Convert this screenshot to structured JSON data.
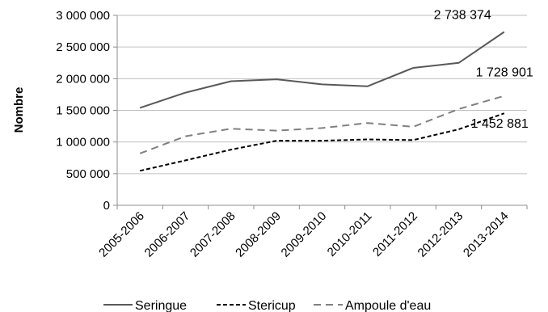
{
  "chart_data": {
    "type": "line",
    "title": "",
    "xlabel": "",
    "ylabel": "Nombre",
    "ylim": [
      0,
      3000000
    ],
    "yticks": [
      0,
      500000,
      1000000,
      1500000,
      2000000,
      2500000,
      3000000
    ],
    "ytick_labels": [
      "0",
      "500 000",
      "1 000 000",
      "1 500 000",
      "2 000 000",
      "2 500 000",
      "3 000 000"
    ],
    "categories": [
      "2005-2006",
      "2006-2007",
      "2007-2008",
      "2008-2009",
      "2009-2010",
      "2010-2011",
      "2011-2012",
      "2012-2013",
      "2013-2014"
    ],
    "grid": "horizontal",
    "legend_position": "bottom",
    "series": [
      {
        "name": "Seringue",
        "color": "#595959",
        "dash": "solid",
        "values": [
          1540000,
          1780000,
          1960000,
          1990000,
          1910000,
          1880000,
          2170000,
          2250000,
          2738374
        ]
      },
      {
        "name": "Stericup",
        "color": "#000000",
        "dash": "dashed",
        "values": [
          545000,
          710000,
          880000,
          1020000,
          1020000,
          1040000,
          1030000,
          1200000,
          1452881
        ]
      },
      {
        "name": "Ampoule d'eau",
        "color": "#808080",
        "dash": "long-dash",
        "values": [
          820000,
          1090000,
          1210000,
          1180000,
          1220000,
          1300000,
          1240000,
          1520000,
          1728901
        ]
      }
    ],
    "annotations": [
      {
        "series": "Seringue",
        "label": "2 738 374"
      },
      {
        "series": "Ampoule d'eau",
        "label": "1 728 901"
      },
      {
        "series": "Stericup",
        "label": "1 452 881"
      }
    ]
  }
}
